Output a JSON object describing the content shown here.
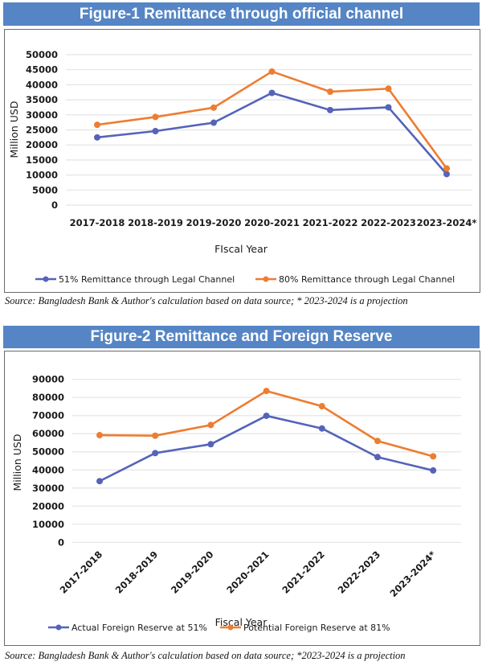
{
  "figures": [
    {
      "title": "Figure-1 Remittance through official channel",
      "source": "Source: Bangladesh Bank & Author's calculation based on data source; * 2023-2024 is a projection"
    },
    {
      "title": "Figure-2 Remittance and Foreign Reserve",
      "source": "Source:  Bangladesh Bank & Author's calculation based on data source; *2023-2024 is a projection"
    }
  ],
  "colors": {
    "title_bar": "#5585c5",
    "series_blue": "#5564b9",
    "series_orange": "#ed7d31",
    "grid": "#e4e4e4"
  },
  "chart_data": [
    {
      "type": "line",
      "title": "Figure-1 Remittance through official channel",
      "xlabel": "FIscal Year",
      "ylabel": "Million USD",
      "ylim": [
        0,
        50000
      ],
      "yticks": [
        0,
        5000,
        10000,
        15000,
        20000,
        25000,
        30000,
        35000,
        40000,
        45000,
        50000
      ],
      "grid": true,
      "legend_position": "bottom",
      "categories": [
        "2017-2018",
        "2018-2019",
        "2019-2020",
        "2020-2021",
        "2021-2022",
        "2022-2023",
        "2023-2024*"
      ],
      "series": [
        {
          "name": "51% Remittance through Legal Channel",
          "color": "#5564b9",
          "values": [
            22500,
            24600,
            27400,
            37300,
            31600,
            32500,
            10300
          ]
        },
        {
          "name": "80% Remittance through Legal Channel",
          "color": "#ed7d31",
          "values": [
            26700,
            29300,
            32400,
            44400,
            37700,
            38700,
            12200
          ]
        }
      ]
    },
    {
      "type": "line",
      "title": "Figure-2 Remittance and Foreign Reserve",
      "xlabel": "Fiscal Year",
      "ylabel": "Million USD",
      "ylim": [
        0,
        90000
      ],
      "yticks": [
        0,
        10000,
        20000,
        30000,
        40000,
        50000,
        60000,
        70000,
        80000,
        90000
      ],
      "grid": true,
      "legend_position": "bottom",
      "categories": [
        "2017-2018",
        "2018-2019",
        "2019-2020",
        "2020-2021",
        "2021-2022",
        "2022-2023",
        "2023-2024*"
      ],
      "series": [
        {
          "name": "Actual Foreign Reserve at 51%",
          "color": "#5564b9",
          "values": [
            33800,
            49300,
            54200,
            69900,
            62900,
            47100,
            39700
          ]
        },
        {
          "name": "Potential Foreign Reserve at 81%",
          "color": "#ed7d31",
          "values": [
            59200,
            58900,
            64800,
            83600,
            75200,
            56000,
            47500
          ]
        }
      ]
    }
  ]
}
